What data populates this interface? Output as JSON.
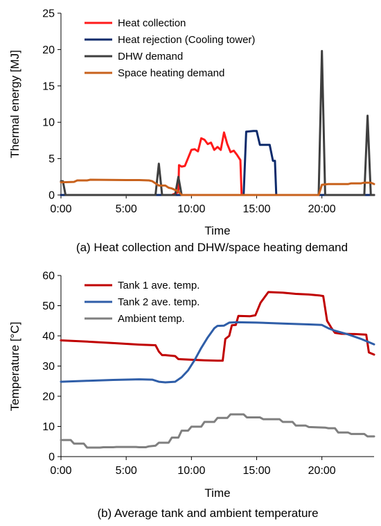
{
  "chart_data": [
    {
      "type": "line",
      "caption": "(a) Heat collection and DHW/space heating demand",
      "xlabel": "Time",
      "ylabel": "Thermal energy [MJ]",
      "xlim": [
        0,
        24
      ],
      "ylim": [
        0,
        25
      ],
      "x_ticks": [
        0,
        5,
        10,
        15,
        20
      ],
      "x_tick_labels": [
        "0:00",
        "5:00",
        "10:00",
        "15:00",
        "20:00"
      ],
      "y_ticks": [
        0,
        5,
        10,
        15,
        20,
        25
      ],
      "y_tick_labels": [
        "0",
        "5",
        "10",
        "15",
        "20",
        "25"
      ],
      "grid": false,
      "legend_position": "top-left",
      "series": [
        {
          "name": "Heat collection",
          "color": "#ff1a1a",
          "points": [
            [
              0,
              0
            ],
            [
              8.5,
              0
            ],
            [
              8.75,
              0.2
            ],
            [
              9.0,
              0.4
            ],
            [
              9.05,
              4.1
            ],
            [
              9.25,
              3.9
            ],
            [
              9.5,
              4.0
            ],
            [
              9.75,
              5.1
            ],
            [
              10.0,
              6.2
            ],
            [
              10.25,
              6.3
            ],
            [
              10.5,
              6.0
            ],
            [
              10.75,
              7.8
            ],
            [
              11.0,
              7.6
            ],
            [
              11.25,
              7.0
            ],
            [
              11.5,
              7.2
            ],
            [
              11.75,
              6.2
            ],
            [
              12.0,
              6.6
            ],
            [
              12.25,
              6.2
            ],
            [
              12.5,
              8.6
            ],
            [
              12.75,
              7.0
            ],
            [
              13.0,
              5.9
            ],
            [
              13.25,
              6.1
            ],
            [
              13.5,
              5.5
            ],
            [
              13.75,
              4.8
            ],
            [
              13.85,
              0
            ],
            [
              24,
              0
            ]
          ]
        },
        {
          "name": "Heat rejection (Cooling tower)",
          "color": "#0d2a6b",
          "points": [
            [
              0,
              0
            ],
            [
              14.0,
              0
            ],
            [
              14.2,
              8.7
            ],
            [
              14.75,
              8.8
            ],
            [
              15.0,
              8.8
            ],
            [
              15.25,
              6.9
            ],
            [
              15.75,
              6.9
            ],
            [
              16.0,
              6.9
            ],
            [
              16.25,
              4.7
            ],
            [
              16.4,
              4.7
            ],
            [
              16.5,
              0
            ],
            [
              24,
              0
            ]
          ]
        },
        {
          "name": "DHW demand",
          "color": "#3f3f3f",
          "points": [
            [
              0,
              1.9
            ],
            [
              0.15,
              1.9
            ],
            [
              0.35,
              0
            ],
            [
              7.25,
              0
            ],
            [
              7.5,
              4.3
            ],
            [
              7.75,
              0
            ],
            [
              8.75,
              0
            ],
            [
              9.0,
              2.5
            ],
            [
              9.25,
              0
            ],
            [
              19.75,
              0
            ],
            [
              20.0,
              19.8
            ],
            [
              20.25,
              0
            ],
            [
              23.25,
              0
            ],
            [
              23.5,
              10.9
            ],
            [
              23.75,
              0
            ],
            [
              24,
              0
            ]
          ]
        },
        {
          "name": "Space heating demand",
          "color": "#c8621d",
          "points": [
            [
              0,
              1.75
            ],
            [
              1.0,
              1.8
            ],
            [
              1.25,
              2.0
            ],
            [
              2.0,
              2.0
            ],
            [
              2.25,
              2.1
            ],
            [
              5.0,
              2.05
            ],
            [
              6.0,
              2.05
            ],
            [
              6.75,
              2.0
            ],
            [
              7.0,
              1.9
            ],
            [
              7.25,
              1.6
            ],
            [
              7.5,
              1.3
            ],
            [
              8.0,
              1.3
            ],
            [
              8.25,
              1.0
            ],
            [
              8.5,
              0.9
            ],
            [
              9.0,
              0.5
            ],
            [
              9.25,
              0
            ],
            [
              19.75,
              0
            ],
            [
              20.0,
              1.4
            ],
            [
              20.5,
              1.5
            ],
            [
              21.5,
              1.5
            ],
            [
              22.0,
              1.5
            ],
            [
              22.25,
              1.6
            ],
            [
              23.0,
              1.6
            ],
            [
              23.25,
              1.7
            ],
            [
              23.75,
              1.7
            ],
            [
              24,
              1.5
            ]
          ]
        }
      ]
    },
    {
      "type": "line",
      "caption": "(b) Average tank and ambient temperature",
      "xlabel": "Time",
      "ylabel": "Temperature [°C]",
      "xlim": [
        0,
        24
      ],
      "ylim": [
        0,
        60
      ],
      "x_ticks": [
        0,
        5,
        10,
        15,
        20
      ],
      "x_tick_labels": [
        "0:00",
        "5:00",
        "10:00",
        "15:00",
        "20:00"
      ],
      "y_ticks": [
        0,
        10,
        20,
        30,
        40,
        50,
        60
      ],
      "y_tick_labels": [
        "0",
        "10",
        "20",
        "30",
        "40",
        "50",
        "60"
      ],
      "grid": false,
      "legend_position": "top-left",
      "series": [
        {
          "name": "Tank 1 ave. temp.",
          "color": "#c00000",
          "points": [
            [
              0,
              38.5
            ],
            [
              2.0,
              38.1
            ],
            [
              4.0,
              37.6
            ],
            [
              6.0,
              37.1
            ],
            [
              7.25,
              36.9
            ],
            [
              7.5,
              34.8
            ],
            [
              7.75,
              33.6
            ],
            [
              8.0,
              33.6
            ],
            [
              8.75,
              33.3
            ],
            [
              9.0,
              32.3
            ],
            [
              10.0,
              32.1
            ],
            [
              11.0,
              31.9
            ],
            [
              12.0,
              31.8
            ],
            [
              12.4,
              31.8
            ],
            [
              12.6,
              39.0
            ],
            [
              12.9,
              40.0
            ],
            [
              13.1,
              43.5
            ],
            [
              13.4,
              43.6
            ],
            [
              13.6,
              46.6
            ],
            [
              14.5,
              46.5
            ],
            [
              14.9,
              46.8
            ],
            [
              15.3,
              51.0
            ],
            [
              15.9,
              54.5
            ],
            [
              17.0,
              54.3
            ],
            [
              18.0,
              53.9
            ],
            [
              19.0,
              53.7
            ],
            [
              19.8,
              53.4
            ],
            [
              20.1,
              53.2
            ],
            [
              20.4,
              45.0
            ],
            [
              20.75,
              42.5
            ],
            [
              21.0,
              41.0
            ],
            [
              21.5,
              40.7
            ],
            [
              22.5,
              40.6
            ],
            [
              23.4,
              40.4
            ],
            [
              23.6,
              34.5
            ],
            [
              24,
              33.8
            ]
          ]
        },
        {
          "name": "Tank 2 ave. temp.",
          "color": "#2f5ea8",
          "points": [
            [
              0,
              24.8
            ],
            [
              2.0,
              25.1
            ],
            [
              4.0,
              25.4
            ],
            [
              6.0,
              25.6
            ],
            [
              7.0,
              25.5
            ],
            [
              7.5,
              24.8
            ],
            [
              8.0,
              24.6
            ],
            [
              8.75,
              24.8
            ],
            [
              9.25,
              26.3
            ],
            [
              9.75,
              28.6
            ],
            [
              10.25,
              32.0
            ],
            [
              10.75,
              36.0
            ],
            [
              11.25,
              39.5
            ],
            [
              11.75,
              42.5
            ],
            [
              12.0,
              43.3
            ],
            [
              12.5,
              43.4
            ],
            [
              12.9,
              44.4
            ],
            [
              13.5,
              44.5
            ],
            [
              15.0,
              44.4
            ],
            [
              17.0,
              44.1
            ],
            [
              19.0,
              43.8
            ],
            [
              20.0,
              43.6
            ],
            [
              20.5,
              42.5
            ],
            [
              21.0,
              41.7
            ],
            [
              22.0,
              40.5
            ],
            [
              23.0,
              39.0
            ],
            [
              24,
              37.2
            ]
          ]
        },
        {
          "name": "Ambient temp.",
          "color": "#7f7f7f",
          "points": [
            [
              0,
              5.5
            ],
            [
              0.75,
              5.5
            ],
            [
              1.0,
              4.3
            ],
            [
              1.75,
              4.3
            ],
            [
              2.0,
              3.0
            ],
            [
              3.0,
              3.0
            ],
            [
              3.25,
              3.1
            ],
            [
              4.0,
              3.1
            ],
            [
              4.25,
              3.2
            ],
            [
              5.75,
              3.2
            ],
            [
              6.0,
              3.1
            ],
            [
              6.5,
              3.1
            ],
            [
              6.75,
              3.4
            ],
            [
              7.25,
              3.6
            ],
            [
              7.5,
              4.6
            ],
            [
              8.25,
              4.6
            ],
            [
              8.5,
              6.3
            ],
            [
              9.0,
              6.3
            ],
            [
              9.25,
              8.6
            ],
            [
              9.75,
              8.6
            ],
            [
              10.0,
              9.9
            ],
            [
              10.75,
              9.9
            ],
            [
              11.0,
              11.5
            ],
            [
              11.75,
              11.5
            ],
            [
              12.0,
              12.8
            ],
            [
              12.75,
              12.8
            ],
            [
              13.0,
              14.0
            ],
            [
              14.0,
              14.0
            ],
            [
              14.25,
              13.0
            ],
            [
              15.25,
              13.0
            ],
            [
              15.5,
              12.4
            ],
            [
              16.75,
              12.4
            ],
            [
              17.0,
              11.5
            ],
            [
              17.75,
              11.5
            ],
            [
              18.0,
              10.3
            ],
            [
              18.75,
              10.3
            ],
            [
              19.0,
              9.8
            ],
            [
              20.25,
              9.6
            ],
            [
              20.5,
              9.4
            ],
            [
              21.0,
              9.4
            ],
            [
              21.25,
              8.0
            ],
            [
              22.0,
              8.0
            ],
            [
              22.25,
              7.5
            ],
            [
              23.25,
              7.5
            ],
            [
              23.5,
              6.7
            ],
            [
              24,
              6.7
            ]
          ]
        }
      ]
    }
  ]
}
